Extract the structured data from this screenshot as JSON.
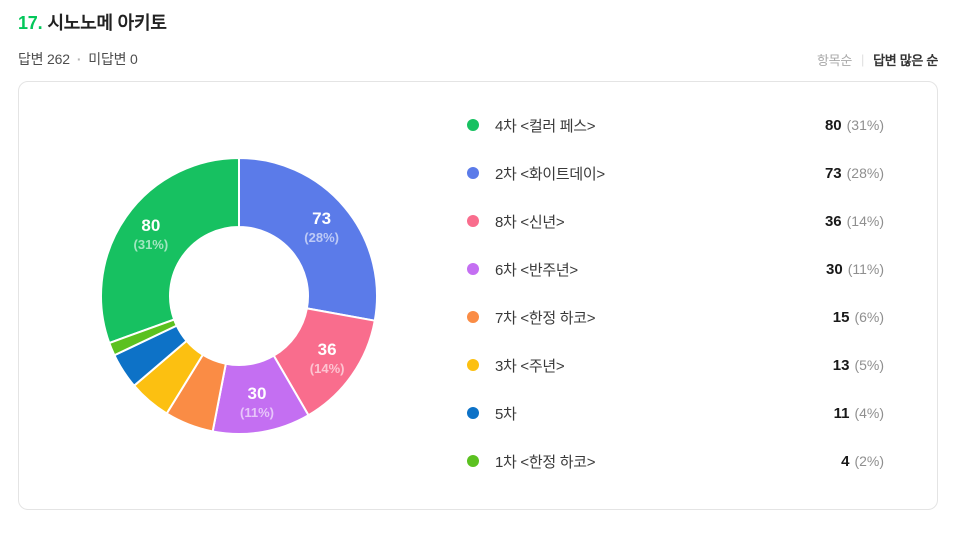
{
  "header": {
    "number": "17.",
    "title": "시노노메 아키토",
    "answered": "답변 262",
    "separator": "·",
    "unanswered": "미답변 0"
  },
  "sort": {
    "option_items": "항목순",
    "divider": "|",
    "option_most_answers": "답변 많은 순",
    "active": "답변 많은 순"
  },
  "chart_data": {
    "type": "pie",
    "variant": "donut",
    "title": "시노노메 아키토",
    "total": 262,
    "layout": {
      "donut_hole_ratio": 0.5,
      "label_min_pct": 10,
      "label_radius_ratio": 0.78,
      "first_slice_ends_at_top": true,
      "direction": "clockwise",
      "legend_position": "right"
    },
    "items": [
      {
        "label": "4차 <컬러 페스>",
        "value": 80,
        "pct": 31,
        "pct_label": "(31%)",
        "color": "#17C161"
      },
      {
        "label": "2차 <화이트데이>",
        "value": 73,
        "pct": 28,
        "pct_label": "(28%)",
        "color": "#5B7BE9"
      },
      {
        "label": "8차 <신년>",
        "value": 36,
        "pct": 14,
        "pct_label": "(14%)",
        "color": "#F96D8D"
      },
      {
        "label": "6차 <반주년>",
        "value": 30,
        "pct": 11,
        "pct_label": "(11%)",
        "color": "#C46FF2"
      },
      {
        "label": "7차 <한정 하코>",
        "value": 15,
        "pct": 6,
        "pct_label": "(6%)",
        "color": "#FA8C45"
      },
      {
        "label": "3차 <주년>",
        "value": 13,
        "pct": 5,
        "pct_label": "(5%)",
        "color": "#FCC011"
      },
      {
        "label": "5차",
        "value": 11,
        "pct": 4,
        "pct_label": "(4%)",
        "color": "#0D72C7"
      },
      {
        "label": "1차 <한정 하코>",
        "value": 4,
        "pct": 2,
        "pct_label": "(2%)",
        "color": "#5BC120"
      }
    ]
  }
}
